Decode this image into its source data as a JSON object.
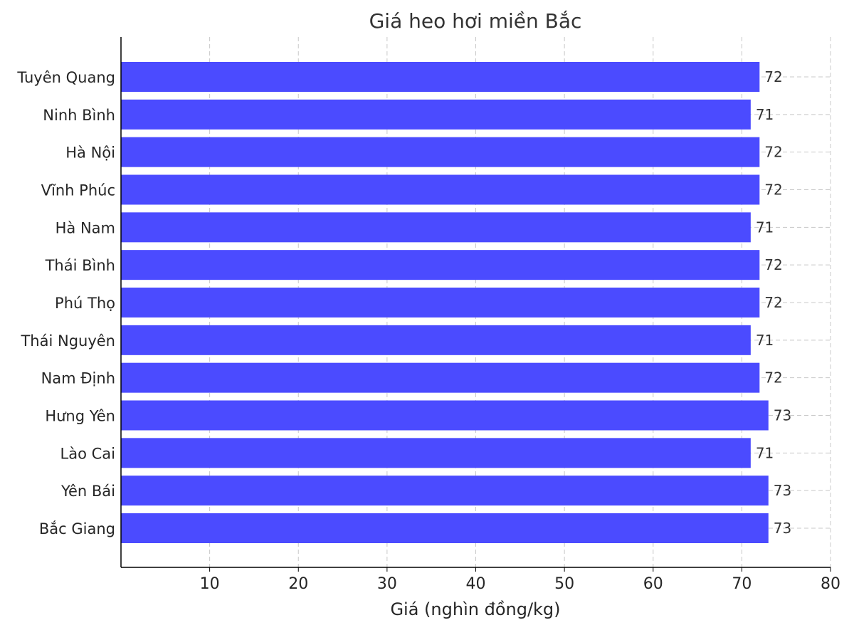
{
  "chart_data": {
    "type": "bar",
    "orientation": "horizontal",
    "title": "Giá heo hơi miền Bắc",
    "xlabel": "Giá (nghìn đồng/kg)",
    "ylabel": "",
    "categories": [
      "Tuyên Quang",
      "Ninh Bình",
      "Hà Nội",
      "Vĩnh Phúc",
      "Hà Nam",
      "Thái Bình",
      "Phú Thọ",
      "Thái Nguyên",
      "Nam Định",
      "Hưng Yên",
      "Lào Cai",
      "Yên Bái",
      "Bắc Giang"
    ],
    "values": [
      72,
      71,
      72,
      72,
      71,
      72,
      72,
      71,
      72,
      73,
      71,
      73,
      73
    ],
    "xlim": [
      0,
      80
    ],
    "xticks": [
      10,
      20,
      30,
      40,
      50,
      60,
      70,
      80
    ],
    "bar_color": "#4b4bff",
    "grid": true,
    "data_labels": true
  }
}
